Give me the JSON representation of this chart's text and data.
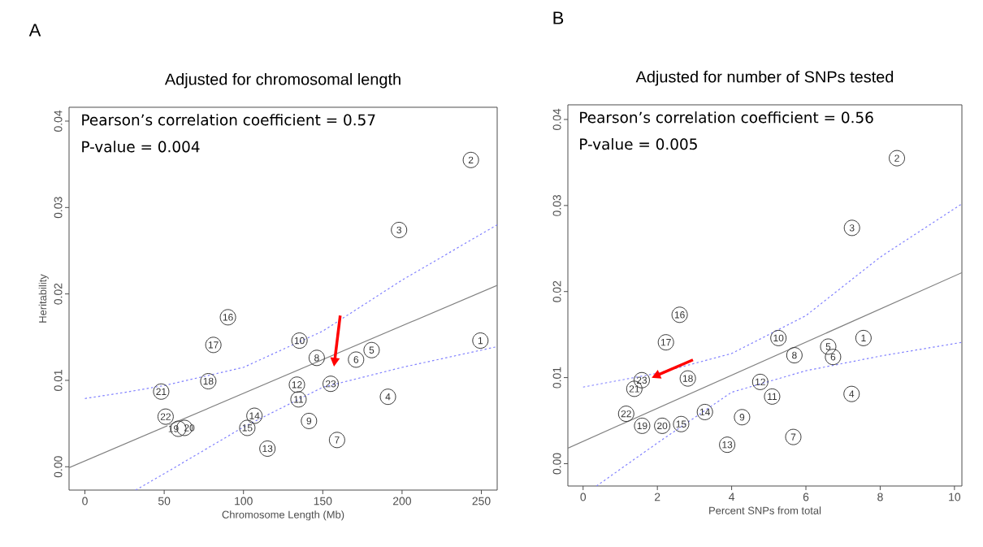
{
  "chart_data": [
    {
      "type": "scatter",
      "title": "Adjusted for chromosomal length",
      "xlabel": "Chromosome Length (Mb)",
      "ylabel": "Heritability",
      "xlim": [
        -10,
        260
      ],
      "ylim": [
        -0.0027,
        0.0416
      ],
      "xticks": [
        0,
        50,
        100,
        150,
        200,
        250
      ],
      "yticks": [
        {
          "value": 0,
          "label": "0.00"
        },
        {
          "value": 0.01,
          "label": "0.01"
        },
        {
          "value": 0.02,
          "label": "0.02"
        },
        {
          "value": 0.03,
          "label": "0.03"
        },
        {
          "value": 0.04,
          "label": "0.04"
        }
      ],
      "series": [
        {
          "type": "scatter",
          "color": "#333333",
          "marker": "circle",
          "x": [
            249.4,
            243.4,
            198.1,
            191.1,
            180.8,
            171,
            159,
            146.2,
            141.3,
            135.3,
            134.7,
            133.7,
            115.1,
            106.9,
            102.4,
            90.2,
            81,
            77.8,
            58.9,
            62.8,
            48.1,
            50.9,
            155
          ],
          "values": [
            0.0146,
            0.0355,
            0.0274,
            0.0081,
            0.0135,
            0.0124,
            0.0031,
            0.0126,
            0.0053,
            0.0146,
            0.0078,
            0.0095,
            0.0021,
            0.0059,
            0.0045,
            0.0173,
            0.0141,
            0.0099,
            0.0044,
            0.0045,
            0.0087,
            0.0058,
            0.0096
          ]
        },
        {
          "type": "line",
          "color": "#808080",
          "line_style": "solid",
          "x": [
            -10,
            260
          ],
          "values": [
            -0.0001,
            0.021
          ]
        },
        {
          "type": "line",
          "color": "#8080ff",
          "line_style": "dotted",
          "x": [
            0,
            25,
            50,
            100,
            150,
            200,
            260
          ],
          "values": [
            0.0079,
            0.0086,
            0.0094,
            0.0115,
            0.0157,
            0.0216,
            0.028
          ]
        },
        {
          "type": "line",
          "color": "#8080ff",
          "line_style": "dotted",
          "x": [
            32,
            50,
            100,
            150,
            200,
            260
          ],
          "values": [
            -0.0027,
            -0.0008,
            0.0046,
            0.0092,
            0.0115,
            0.0139
          ]
        }
      ],
      "annotations": [
        "A",
        "Pearson’s correlation coefficient = 0.57",
        "P-value = 0.004",
        {
          "text": "1",
          "x": 249.4,
          "y": 0.0146
        },
        {
          "text": "2",
          "x": 243.4,
          "y": 0.0355
        },
        {
          "text": "3",
          "x": 198.1,
          "y": 0.0274
        },
        {
          "text": "4",
          "x": 191.1,
          "y": 0.0081
        },
        {
          "text": "5",
          "x": 180.8,
          "y": 0.0135
        },
        {
          "text": "6",
          "x": 171,
          "y": 0.0124
        },
        {
          "text": "7",
          "x": 159,
          "y": 0.0031
        },
        {
          "text": "8",
          "x": 146.2,
          "y": 0.0126
        },
        {
          "text": "9",
          "x": 141.3,
          "y": 0.0053
        },
        {
          "text": "10",
          "x": 135.3,
          "y": 0.0146
        },
        {
          "text": "11",
          "x": 134.7,
          "y": 0.0078
        },
        {
          "text": "12",
          "x": 133.7,
          "y": 0.0095
        },
        {
          "text": "13",
          "x": 115.1,
          "y": 0.0021
        },
        {
          "text": "14",
          "x": 106.9,
          "y": 0.0059
        },
        {
          "text": "15",
          "x": 102.4,
          "y": 0.0045
        },
        {
          "text": "16",
          "x": 90.2,
          "y": 0.0173
        },
        {
          "text": "17",
          "x": 81,
          "y": 0.0141
        },
        {
          "text": "18",
          "x": 77.8,
          "y": 0.0099
        },
        {
          "text": "19",
          "x": 58.9,
          "y": 0.0044
        },
        {
          "text": "20",
          "x": 62.8,
          "y": 0.0045
        },
        {
          "text": "21",
          "x": 48.1,
          "y": 0.0087
        },
        {
          "text": "22",
          "x": 50.9,
          "y": 0.0058
        },
        {
          "text": "23",
          "x": 155,
          "y": 0.0096
        }
      ]
    },
    {
      "type": "scatter",
      "title": "Adjusted for number of SNPs tested",
      "xlabel": "Percent SNPs from total",
      "xlim": [
        -0.41,
        10.2
      ],
      "ylim": [
        -0.0026,
        0.0417
      ],
      "xticks": [
        0,
        2,
        4,
        6,
        8,
        10
      ],
      "yticks": [
        {
          "value": 0,
          "label": "0.00"
        },
        {
          "value": 0.01,
          "label": "0.01"
        },
        {
          "value": 0.02,
          "label": "0.02"
        },
        {
          "value": 0.03,
          "label": "0.03"
        },
        {
          "value": 0.04,
          "label": "0.04"
        }
      ],
      "series": [
        {
          "type": "scatter",
          "color": "#333333",
          "marker": "circle",
          "x": [
            7.55,
            8.45,
            7.24,
            7.23,
            6.6,
            6.73,
            5.66,
            5.69,
            4.28,
            5.26,
            5.09,
            4.77,
            3.88,
            3.28,
            2.64,
            2.6,
            2.23,
            2.82,
            1.59,
            2.13,
            1.38,
            1.16,
            1.58
          ],
          "values": [
            0.0146,
            0.0355,
            0.0274,
            0.0081,
            0.0136,
            0.0124,
            0.0031,
            0.0126,
            0.0054,
            0.0146,
            0.0078,
            0.0095,
            0.0022,
            0.006,
            0.0046,
            0.0173,
            0.0141,
            0.0099,
            0.0044,
            0.0044,
            0.0087,
            0.0058,
            0.0097
          ]
        },
        {
          "type": "line",
          "color": "#808080",
          "line_style": "solid",
          "x": [
            -0.41,
            10.2
          ],
          "values": [
            0.0018,
            0.0222
          ]
        },
        {
          "type": "line",
          "color": "#8080ff",
          "line_style": "dotted",
          "x": [
            0,
            2,
            4,
            6,
            8,
            10.2
          ],
          "values": [
            0.0089,
            0.0105,
            0.0128,
            0.0172,
            0.024,
            0.0302
          ]
        },
        {
          "type": "line",
          "color": "#8080ff",
          "line_style": "dotted",
          "x": [
            0.36,
            2,
            4,
            6,
            8,
            10.2
          ],
          "values": [
            -0.0026,
            0.0024,
            0.0083,
            0.0108,
            0.0125,
            0.0141
          ]
        }
      ],
      "annotations": [
        "B",
        "Pearson’s correlation coefficient = 0.56",
        "P-value = 0.005",
        {
          "text": "1",
          "x": 7.55,
          "y": 0.0146
        },
        {
          "text": "2",
          "x": 8.45,
          "y": 0.0355
        },
        {
          "text": "3",
          "x": 7.24,
          "y": 0.0274
        },
        {
          "text": "4",
          "x": 7.23,
          "y": 0.0081
        },
        {
          "text": "5",
          "x": 6.6,
          "y": 0.0136
        },
        {
          "text": "6",
          "x": 6.73,
          "y": 0.0124
        },
        {
          "text": "7",
          "x": 5.66,
          "y": 0.0031
        },
        {
          "text": "8",
          "x": 5.69,
          "y": 0.0126
        },
        {
          "text": "9",
          "x": 4.28,
          "y": 0.0054
        },
        {
          "text": "10",
          "x": 5.26,
          "y": 0.0146
        },
        {
          "text": "11",
          "x": 5.09,
          "y": 0.0078
        },
        {
          "text": "12",
          "x": 4.77,
          "y": 0.0095
        },
        {
          "text": "13",
          "x": 3.88,
          "y": 0.0022
        },
        {
          "text": "14",
          "x": 3.28,
          "y": 0.006
        },
        {
          "text": "15",
          "x": 2.64,
          "y": 0.0046
        },
        {
          "text": "16",
          "x": 2.6,
          "y": 0.0173
        },
        {
          "text": "17",
          "x": 2.23,
          "y": 0.0141
        },
        {
          "text": "18",
          "x": 2.82,
          "y": 0.0099
        },
        {
          "text": "19",
          "x": 1.59,
          "y": 0.0044
        },
        {
          "text": "20",
          "x": 2.13,
          "y": 0.0044
        },
        {
          "text": "21",
          "x": 1.38,
          "y": 0.0087
        },
        {
          "text": "22",
          "x": 1.16,
          "y": 0.0058
        },
        {
          "text": "23",
          "x": 1.58,
          "y": 0.0097
        }
      ]
    }
  ]
}
